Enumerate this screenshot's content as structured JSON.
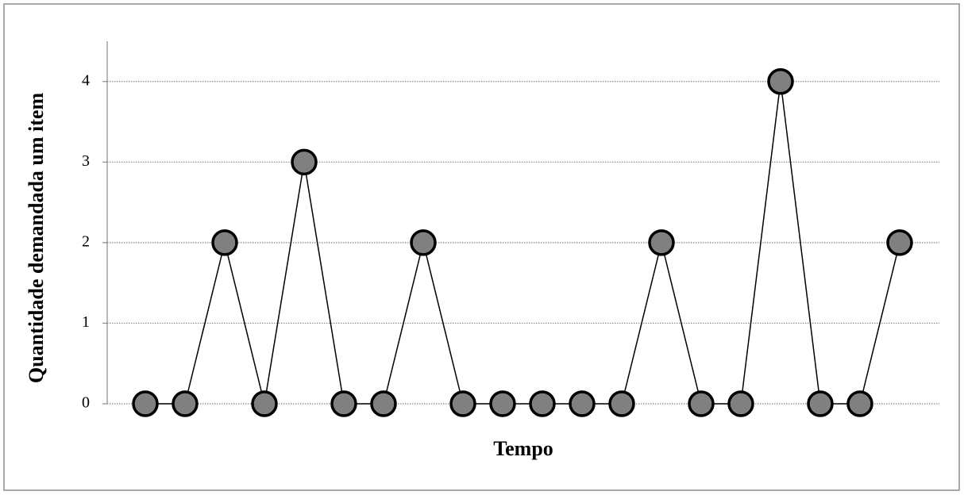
{
  "chart_data": {
    "type": "line",
    "xlabel": "Tempo",
    "ylabel": "Quantidade demandada um item",
    "categories": [
      null,
      null,
      null,
      null,
      null,
      null,
      null,
      null,
      null,
      null,
      null,
      null,
      null,
      null,
      null,
      null,
      null,
      null,
      null,
      null
    ],
    "values": [
      0,
      0,
      2,
      0,
      3,
      0,
      0,
      2,
      0,
      0,
      0,
      0,
      0,
      2,
      0,
      0,
      4,
      0,
      0,
      2
    ],
    "color": "#808080",
    "ylim": [
      0,
      4.5
    ],
    "yticks": [
      0,
      1,
      2,
      3,
      4
    ],
    "grid": true
  }
}
